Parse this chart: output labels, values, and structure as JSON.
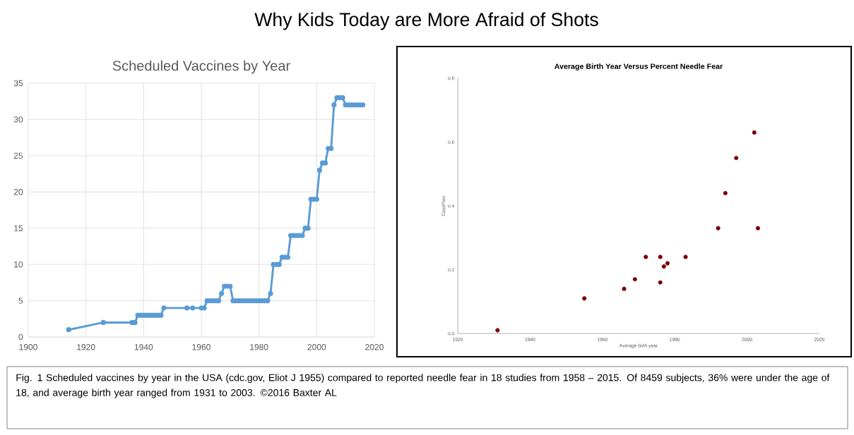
{
  "chart_data": [
    {
      "type": "line",
      "title": "Scheduled Vaccines by Year",
      "color": "#5b9bd5",
      "marker": "circle",
      "grid": true,
      "x": [
        1914,
        1926,
        1936,
        1937,
        1938,
        1939,
        1940,
        1941,
        1942,
        1943,
        1944,
        1945,
        1946,
        1947,
        1955,
        1957,
        1960,
        1961,
        1962,
        1963,
        1964,
        1965,
        1966,
        1967,
        1968,
        1969,
        1970,
        1971,
        1972,
        1973,
        1974,
        1975,
        1976,
        1977,
        1978,
        1979,
        1980,
        1981,
        1982,
        1983,
        1984,
        1985,
        1986,
        1987,
        1988,
        1989,
        1990,
        1991,
        1992,
        1993,
        1994,
        1995,
        1996,
        1997,
        1998,
        1999,
        2000,
        2001,
        2002,
        2003,
        2004,
        2005,
        2006,
        2007,
        2008,
        2009,
        2010,
        2011,
        2012,
        2013,
        2014,
        2015,
        2016
      ],
      "values": [
        1,
        2,
        2,
        2,
        3,
        3,
        3,
        3,
        3,
        3,
        3,
        3,
        3,
        4,
        4,
        4,
        4,
        4,
        5,
        5,
        5,
        5,
        5,
        6,
        7,
        7,
        7,
        5,
        5,
        5,
        5,
        5,
        5,
        5,
        5,
        5,
        5,
        5,
        5,
        5,
        6,
        10,
        10,
        10,
        11,
        11,
        11,
        14,
        14,
        14,
        14,
        14,
        15,
        15,
        19,
        19,
        19,
        23,
        24,
        24,
        26,
        26,
        32,
        33,
        33,
        33,
        32,
        32,
        32,
        32,
        32,
        32,
        32
      ],
      "xlim": [
        1900,
        2020
      ],
      "xticks": [
        1900,
        1920,
        1940,
        1960,
        1980,
        2000,
        2020
      ],
      "ylim": [
        0,
        35
      ],
      "yticks": [
        0,
        5,
        10,
        15,
        20,
        25,
        30,
        35
      ]
    },
    {
      "type": "scatter",
      "title": "Average Birth Year Versus Percent Needle Fear",
      "xlabel": "Average birth year",
      "ylabel": "CasePerc",
      "color": "#7b0000",
      "marker": "circle",
      "x": [
        1931,
        1955,
        1966,
        1969,
        1972,
        1976,
        1976,
        1977,
        1978,
        1983,
        1992,
        1994,
        1997,
        2002,
        2003
      ],
      "values": [
        0.01,
        0.11,
        0.14,
        0.17,
        0.24,
        0.24,
        0.16,
        0.21,
        0.22,
        0.24,
        0.33,
        0.44,
        0.55,
        0.63,
        0.33
      ],
      "xlim": [
        1920,
        2020
      ],
      "xticks": [
        1920,
        1940,
        1960,
        1980,
        2000,
        2020
      ],
      "ylim": [
        0,
        0.8
      ],
      "yticks": [
        {
          "value": 0,
          "label": "0.0"
        },
        {
          "value": 0.2,
          "label": "0.2"
        },
        {
          "value": 0.4,
          "label": "0.4"
        },
        {
          "value": 0.6,
          "label": "0.6"
        },
        {
          "value": 0.8,
          "label": "0.8"
        }
      ]
    },
    {
      "type": "other",
      "title": "Why Kids Today are More Afraid of Shots",
      "annotations": [
        "Fig. 1 Scheduled vaccines by year in the USA (cdc.gov, Eliot J 1955) compared to reported needle fear in 18 studies from 1958 – 2015. Of 8459 subjects, 36% were under the age of 18, and average birth year ranged from 1931 to 2003.  ©2016 Baxter AL"
      ]
    }
  ]
}
